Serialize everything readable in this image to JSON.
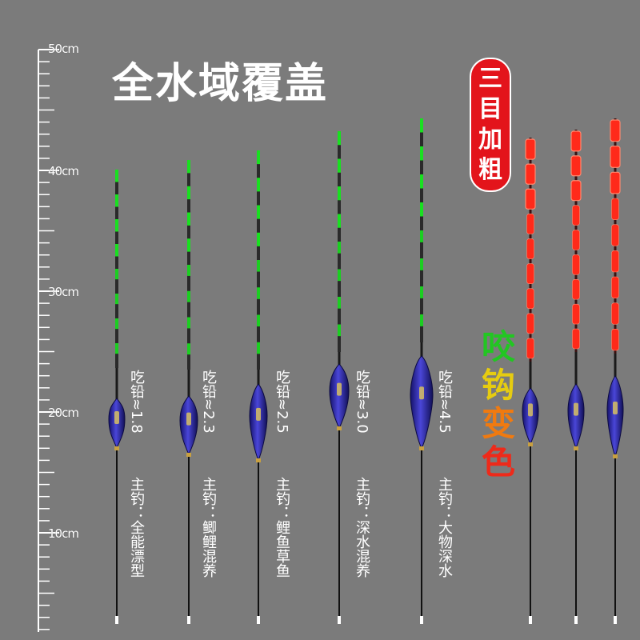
{
  "title": "全水域覆盖",
  "badge": [
    "三",
    "目",
    "加",
    "粗"
  ],
  "bite_text": [
    {
      "char": "咬",
      "color": "#22c622"
    },
    {
      "char": "钩",
      "color": "#e6cc10"
    },
    {
      "char": "变",
      "color": "#f07a10"
    },
    {
      "char": "色",
      "color": "#ee2a1a"
    }
  ],
  "ruler": {
    "unit": "cm",
    "labels": [
      "50cm",
      "40cm",
      "30cm",
      "20cm",
      "10cm"
    ]
  },
  "floats": [
    {
      "weight": "吃铅≈1.8",
      "use": "主钓：全能漂型"
    },
    {
      "weight": "吃铅≈2.3",
      "use": "主钓：鲫鲤混养"
    },
    {
      "weight": "吃铅≈2.5",
      "use": "主钓：鲤鱼草鱼"
    },
    {
      "weight": "吃铅≈3.0",
      "use": "主钓：深水混养"
    },
    {
      "weight": "吃铅≈4.5",
      "use": "主钓：大物深水"
    }
  ],
  "colors": {
    "background": "#7b7b7b",
    "green_tip": "#19e020",
    "red_tip": "#ff2a1a",
    "body": "#2e2aa8",
    "badge": "#e3141b"
  }
}
